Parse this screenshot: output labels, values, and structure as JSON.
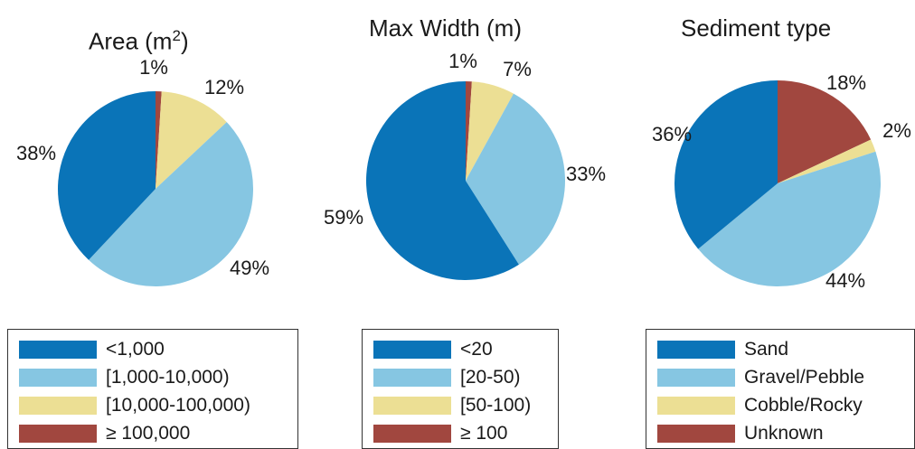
{
  "colors": {
    "dark_blue": "#0a74b8",
    "light_blue": "#86c6e2",
    "yellow": "#ecdf94",
    "brown": "#a1473f"
  },
  "chart_data": [
    {
      "type": "pie",
      "title": "Area (m",
      "title_sup": "2",
      "title_tail": ")",
      "slices": [
        {
          "label": "<1,000",
          "value": 38,
          "text": "38%",
          "color": "#0a74b8"
        },
        {
          "label": "[1,000-10,000)",
          "value": 49,
          "text": "49%",
          "color": "#86c6e2"
        },
        {
          "label": "[10,000-100,000)",
          "value": 12,
          "text": "12%",
          "color": "#ecdf94"
        },
        {
          "label": "≥ 100,000",
          "value": 1,
          "text": "1%",
          "color": "#a1473f"
        }
      ]
    },
    {
      "type": "pie",
      "title": "Max Width (m)",
      "slices": [
        {
          "label": "<20",
          "value": 59,
          "text": "59%",
          "color": "#0a74b8"
        },
        {
          "label": "[20-50)",
          "value": 33,
          "text": "33%",
          "color": "#86c6e2"
        },
        {
          "label": "[50-100)",
          "value": 7,
          "text": "7%",
          "color": "#ecdf94"
        },
        {
          "label": "≥ 100",
          "value": 1,
          "text": "1%",
          "color": "#a1473f"
        }
      ]
    },
    {
      "type": "pie",
      "title": "Sediment type",
      "slices": [
        {
          "label": "Sand",
          "value": 36,
          "text": "36%",
          "color": "#0a74b8"
        },
        {
          "label": "Gravel/Pebble",
          "value": 44,
          "text": "44%",
          "color": "#86c6e2"
        },
        {
          "label": "Cobble/Rocky",
          "value": 2,
          "text": "2%",
          "color": "#ecdf94"
        },
        {
          "label": "Unknown",
          "value": 18,
          "text": "18%",
          "color": "#a1473f"
        }
      ]
    }
  ]
}
